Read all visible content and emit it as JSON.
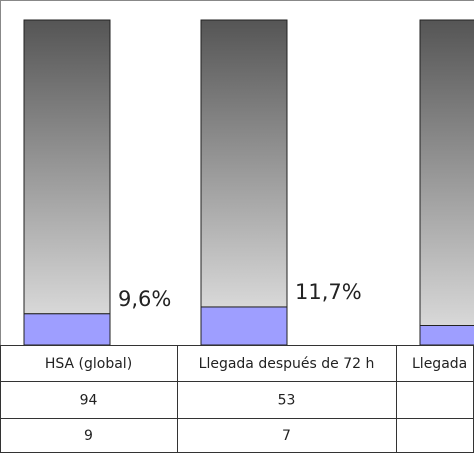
{
  "chart_data": {
    "type": "bar",
    "stacked": true,
    "categories": [
      "HSA (global)",
      "Llegada después de 72 h",
      "Llegada"
    ],
    "percent_labels": [
      "9,6%",
      "11,7%",
      ""
    ],
    "series": [
      {
        "values": [
          9.6,
          11.7,
          6.0
        ],
        "color": "#9e9eff"
      },
      {
        "values": [
          90.4,
          88.3,
          94.0
        ],
        "color_top": "#555555",
        "color_bottom": "#d8d8d8"
      }
    ],
    "table": {
      "rows": [
        [
          "94",
          "53",
          ""
        ],
        [
          "9",
          "7",
          ""
        ]
      ]
    },
    "ylim": [
      0,
      100
    ],
    "grid": false,
    "legend": "none"
  }
}
